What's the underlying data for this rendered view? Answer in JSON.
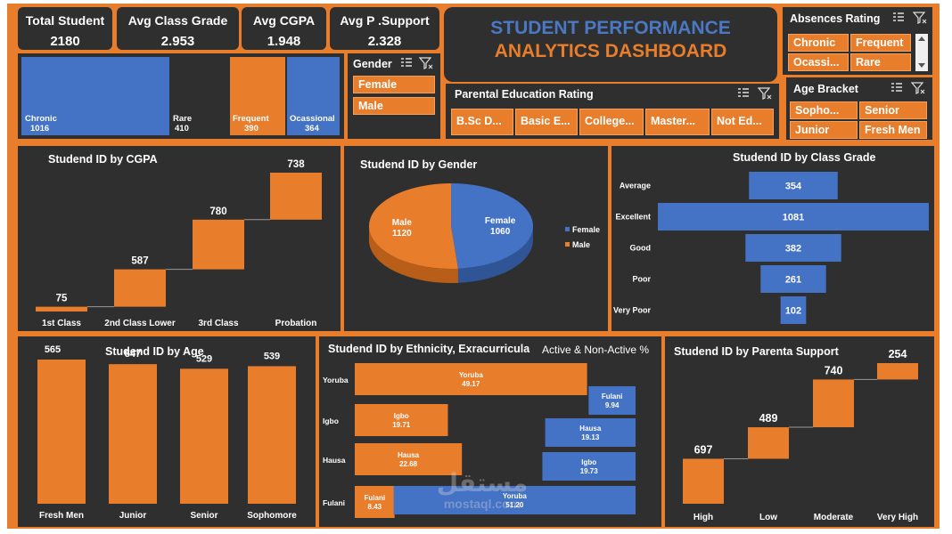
{
  "kpis": [
    {
      "title": "Total Student",
      "value": "2180"
    },
    {
      "title": "Avg Class Grade",
      "value": "2.953"
    },
    {
      "title": "Avg CGPA",
      "value": "1.948"
    },
    {
      "title": "Avg P .Support",
      "value": "2.328"
    }
  ],
  "header": {
    "line1": "STUDENT PERFORMANCE",
    "line2": "ANALYTICS DASHBOARD"
  },
  "absence_bars": [
    {
      "label": "Chronic",
      "value": "1016"
    },
    {
      "label": "Rare",
      "value": "410"
    },
    {
      "label": "Frequent",
      "value": "390"
    },
    {
      "label": "Ocassional",
      "value": "364"
    }
  ],
  "slicers": {
    "gender": {
      "title": "Gender",
      "items": [
        "Female",
        "Male"
      ]
    },
    "absences": {
      "title": "Absences Rating",
      "items": [
        "Chronic",
        "Frequent",
        "Ocassi...",
        "Rare"
      ]
    },
    "parental_education": {
      "title": "Parental Education Rating",
      "items": [
        "B.Sc D...",
        "Basic E...",
        "College...",
        "Master...",
        "Not Ed..."
      ]
    },
    "age_bracket": {
      "title": "Age Bracket",
      "items": [
        "Sopho...",
        "Senior",
        "Junior",
        "Fresh Men"
      ]
    }
  },
  "colors": {
    "orange": "#e87d2b",
    "blue": "#4472c4",
    "panel": "#2f2f2f",
    "title_blue": "#4a78c2"
  },
  "chart_data": [
    {
      "id": "cgpa",
      "type": "waterfall",
      "title": "Studend ID by CGPA",
      "categories": [
        "1st Class",
        "2nd Class Lower",
        "3rd Class",
        "Probation"
      ],
      "values": [
        75,
        587,
        780,
        738
      ]
    },
    {
      "id": "gender",
      "type": "pie",
      "title": "Studend ID by Gender",
      "slices": [
        {
          "name": "Female",
          "value": 1060
        },
        {
          "name": "Male",
          "value": 1120
        }
      ],
      "legend": [
        "Female",
        "Male"
      ]
    },
    {
      "id": "class_grade",
      "type": "bar",
      "orientation": "horizontal",
      "title": "Studend ID by Class Grade",
      "categories": [
        "Average",
        "Excellent",
        "Good",
        "Poor",
        "Very Poor"
      ],
      "values": [
        354,
        1081,
        382,
        261,
        102
      ]
    },
    {
      "id": "age",
      "type": "bar",
      "title": "Studend ID by Age",
      "categories": [
        "Fresh Men",
        "Junior",
        "Senior",
        "Sophomore"
      ],
      "values": [
        565,
        547,
        529,
        539
      ]
    },
    {
      "id": "ethnicity",
      "type": "bar",
      "orientation": "horizontal",
      "title": "Studend ID by Ethnicity, Exracurricula",
      "subtitle": "Active & Non-Active %",
      "categories": [
        "Yoruba",
        "Igbo",
        "Hausa",
        "Fulani"
      ],
      "series": [
        {
          "segments": [
            {
              "label": "Yoruba",
              "value": "49.17"
            },
            {
              "label": "Igbo",
              "value": "19.71"
            },
            {
              "label": "Hausa",
              "value": "22.68"
            },
            {
              "label": "Fulani",
              "value": "8.43"
            }
          ]
        },
        {
          "segments": [
            {
              "label": "Fulani",
              "value": "9.94"
            },
            {
              "label": "Hausa",
              "value": "19.13"
            },
            {
              "label": "Igbo",
              "value": "19.73"
            },
            {
              "label": "Yoruba",
              "value": "51.20"
            }
          ]
        }
      ]
    },
    {
      "id": "parent_support",
      "type": "waterfall",
      "title": "Studend ID by Parenta Support",
      "categories": [
        "High",
        "Low",
        "Moderate",
        "Very High"
      ],
      "values": [
        697,
        489,
        740,
        254
      ]
    }
  ],
  "watermark": {
    "arabic": "مستقل",
    "latin": "mostaql.com"
  }
}
